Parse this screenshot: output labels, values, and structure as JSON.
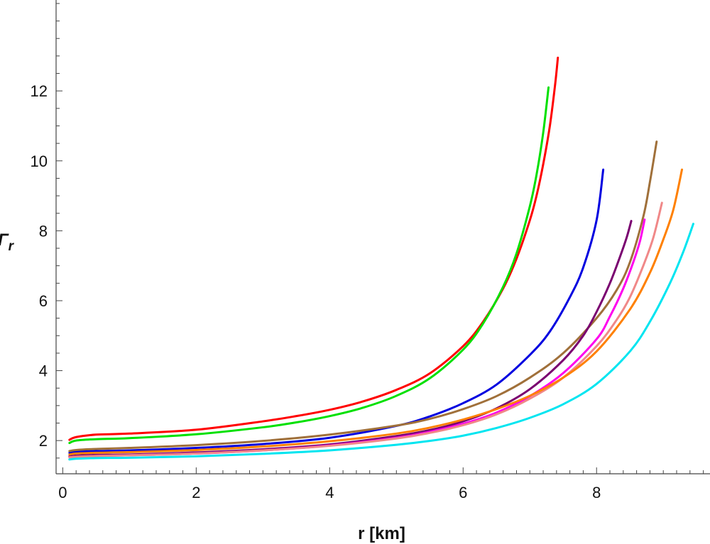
{
  "chart_data": {
    "type": "line",
    "title": "",
    "xlabel": "r [km]",
    "ylabel_base": "Γ",
    "ylabel_sub": "r",
    "xlim": [
      -0.1,
      9.7
    ],
    "ylim": [
      1.05,
      14.6
    ],
    "xticks": [
      0,
      2,
      4,
      6,
      8
    ],
    "yticks": [
      2,
      4,
      6,
      8,
      10,
      12
    ],
    "grid": false,
    "legend": "none",
    "series": [
      {
        "color": "#ff0000",
        "x": [
          0.1,
          0.2,
          0.5,
          1,
          2,
          3,
          3.5,
          4,
          4.5,
          5,
          5.5,
          6,
          6.3,
          6.6,
          6.8,
          7.0,
          7.1,
          7.2,
          7.3,
          7.38,
          7.42
        ],
        "y": [
          2.02,
          2.1,
          2.17,
          2.2,
          2.31,
          2.55,
          2.7,
          2.88,
          3.12,
          3.45,
          3.92,
          4.7,
          5.4,
          6.35,
          7.2,
          8.3,
          9.0,
          9.9,
          11.0,
          12.2,
          12.95
        ]
      },
      {
        "color": "#00e000",
        "x": [
          0.1,
          0.2,
          0.5,
          1,
          2,
          3,
          3.5,
          4,
          4.5,
          5,
          5.5,
          6,
          6.3,
          6.6,
          6.8,
          7.0,
          7.1,
          7.2,
          7.28
        ],
        "y": [
          1.93,
          2.0,
          2.04,
          2.07,
          2.18,
          2.38,
          2.52,
          2.7,
          2.94,
          3.28,
          3.78,
          4.6,
          5.35,
          6.4,
          7.35,
          8.7,
          9.6,
          10.8,
          12.1
        ]
      },
      {
        "color": "#0000e0",
        "x": [
          0.1,
          0.2,
          0.5,
          1,
          2,
          3,
          4,
          5,
          5.5,
          6,
          6.5,
          7,
          7.3,
          7.6,
          7.8,
          8.0,
          8.1
        ],
        "y": [
          1.65,
          1.68,
          1.7,
          1.72,
          1.79,
          1.9,
          2.08,
          2.42,
          2.69,
          3.07,
          3.6,
          4.45,
          5.12,
          6.1,
          6.95,
          8.3,
          9.75
        ]
      },
      {
        "color": "#a0703a",
        "x": [
          0.1,
          0.2,
          0.5,
          1,
          2,
          3,
          4,
          5,
          5.5,
          6,
          6.5,
          7,
          7.5,
          8,
          8.3,
          8.5,
          8.7,
          8.8,
          8.9
        ],
        "y": [
          1.7,
          1.73,
          1.76,
          1.79,
          1.87,
          1.99,
          2.17,
          2.43,
          2.62,
          2.9,
          3.27,
          3.8,
          4.5,
          5.5,
          6.3,
          7.1,
          8.4,
          9.4,
          10.55
        ]
      },
      {
        "color": "#7a0070",
        "x": [
          0.1,
          0.2,
          0.5,
          1,
          2,
          3,
          4,
          5,
          5.5,
          6,
          6.5,
          7,
          7.5,
          7.8,
          8.0,
          8.2,
          8.35,
          8.45,
          8.52
        ],
        "y": [
          1.55,
          1.57,
          1.59,
          1.6,
          1.66,
          1.75,
          1.89,
          2.13,
          2.3,
          2.55,
          2.92,
          3.47,
          4.3,
          5.0,
          5.68,
          6.5,
          7.25,
          7.8,
          8.28
        ]
      },
      {
        "color": "#ff00ee",
        "x": [
          0.1,
          0.2,
          0.5,
          1,
          2,
          3,
          4,
          5,
          5.5,
          6,
          6.5,
          7,
          7.5,
          8,
          8.2,
          8.4,
          8.55,
          8.65,
          8.72
        ],
        "y": [
          1.52,
          1.54,
          1.56,
          1.58,
          1.63,
          1.72,
          1.86,
          2.08,
          2.25,
          2.48,
          2.8,
          3.27,
          3.93,
          4.9,
          5.55,
          6.35,
          7.1,
          7.7,
          8.32
        ]
      },
      {
        "color": "#f08888",
        "x": [
          0.1,
          0.2,
          0.5,
          1,
          2,
          3,
          4,
          5,
          5.5,
          6,
          6.5,
          7,
          7.5,
          8,
          8.3,
          8.5,
          8.7,
          8.85,
          8.98
        ],
        "y": [
          1.52,
          1.54,
          1.56,
          1.58,
          1.63,
          1.72,
          1.85,
          2.06,
          2.22,
          2.44,
          2.75,
          3.2,
          3.8,
          4.7,
          5.45,
          6.1,
          7.0,
          7.8,
          8.8
        ]
      },
      {
        "color": "#ff8000",
        "x": [
          0.1,
          0.2,
          0.5,
          1,
          2,
          3,
          4,
          5,
          5.5,
          6,
          6.5,
          7,
          7.5,
          8,
          8.5,
          8.8,
          9.0,
          9.15,
          9.28
        ],
        "y": [
          1.6,
          1.63,
          1.65,
          1.67,
          1.73,
          1.83,
          1.98,
          2.2,
          2.37,
          2.6,
          2.9,
          3.28,
          3.8,
          4.55,
          5.75,
          6.8,
          7.75,
          8.6,
          9.75
        ]
      },
      {
        "color": "#00e5f0",
        "x": [
          0.1,
          0.2,
          0.5,
          1,
          2,
          3,
          4,
          5,
          5.5,
          6,
          6.5,
          7,
          7.5,
          8,
          8.5,
          8.8,
          9.1,
          9.3,
          9.45
        ],
        "y": [
          1.46,
          1.48,
          1.5,
          1.51,
          1.55,
          1.62,
          1.72,
          1.88,
          1.99,
          2.14,
          2.36,
          2.65,
          3.04,
          3.62,
          4.55,
          5.4,
          6.5,
          7.4,
          8.2
        ]
      }
    ]
  }
}
